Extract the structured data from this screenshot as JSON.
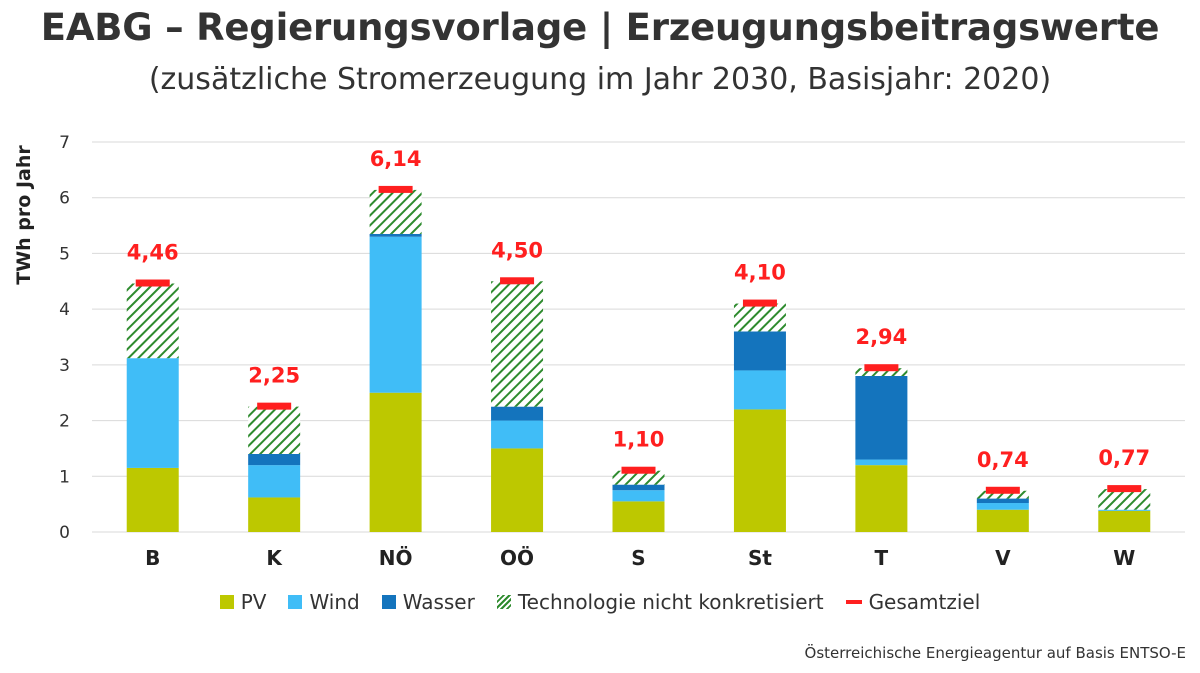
{
  "title": "EABG – Regierungsvorlage | Erzeugungsbeitragswerte",
  "subtitle": "(zusätzliche Stromerzeugung im Jahr 2030, Basisjahr: 2020)",
  "source": "Österreichische Energieagentur auf Basis ENTSO-E",
  "chart_data": {
    "type": "bar",
    "stacked": true,
    "ylabel": "TWh pro Jahr",
    "xlabel": "",
    "ylim": [
      0,
      7
    ],
    "yticks": [
      "0",
      "1",
      "2",
      "3",
      "4",
      "5",
      "6",
      "7"
    ],
    "grid": true,
    "legend_position": "bottom",
    "categories": [
      "B",
      "K",
      "NÖ",
      "OÖ",
      "S",
      "St",
      "T",
      "V",
      "W"
    ],
    "series": [
      {
        "name": "PV",
        "color": "#bdc800",
        "values": [
          1.15,
          0.62,
          2.5,
          1.5,
          0.55,
          2.2,
          1.2,
          0.4,
          0.38
        ]
      },
      {
        "name": "Wind",
        "color": "#40bdf7",
        "values": [
          1.97,
          0.58,
          2.8,
          0.5,
          0.2,
          0.7,
          0.1,
          0.12,
          0.02
        ]
      },
      {
        "name": "Wasser",
        "color": "#1474bd",
        "values": [
          0.0,
          0.2,
          0.05,
          0.25,
          0.1,
          0.7,
          1.5,
          0.08,
          0.0
        ]
      },
      {
        "name": "Technologie nicht konkretisiert",
        "color": "#2e8b2e",
        "pattern": "hatch",
        "values": [
          1.34,
          0.85,
          0.79,
          2.25,
          0.25,
          0.5,
          0.14,
          0.14,
          0.37
        ]
      }
    ],
    "target": {
      "name": "Gesamtziel",
      "color": "#ff1f1f",
      "values": [
        4.46,
        2.25,
        6.14,
        4.5,
        1.1,
        4.1,
        2.94,
        0.74,
        0.77
      ],
      "labels": [
        "4,46",
        "2,25",
        "6,14",
        "4,50",
        "1,10",
        "4,10",
        "2,94",
        "0,74",
        "0,77"
      ]
    }
  }
}
